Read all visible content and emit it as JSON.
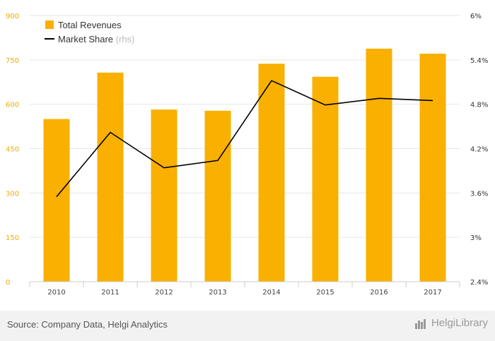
{
  "chart_data": {
    "type": "bar",
    "categories": [
      "2010",
      "2011",
      "2012",
      "2013",
      "2014",
      "2015",
      "2016",
      "2017"
    ],
    "series": [
      {
        "name": "Total Revenues",
        "type": "bar",
        "axis": "left",
        "color": "#f9b000",
        "values": [
          550,
          707,
          582,
          578,
          737,
          693,
          788,
          771
        ]
      },
      {
        "name": "Market Share",
        "name_suffix": "(rhs)",
        "type": "line",
        "axis": "right",
        "color": "#000000",
        "values": [
          3.55,
          4.42,
          3.94,
          4.04,
          5.12,
          4.79,
          4.88,
          4.85
        ]
      }
    ],
    "y_left": {
      "ylim": [
        0,
        900
      ],
      "ticks": [
        "0",
        "150",
        "300",
        "450",
        "600",
        "750",
        "900"
      ]
    },
    "y_right": {
      "ylim": [
        2.4,
        6
      ],
      "ticks": [
        "2.4%",
        "3%",
        "3.6%",
        "4.2%",
        "4.8%",
        "5.4%",
        "6%"
      ]
    },
    "grid": true,
    "legend": "top-left"
  },
  "footer": {
    "source": "Source: Company Data, Helgi Analytics",
    "logo_text": "HelgiLibrary"
  }
}
